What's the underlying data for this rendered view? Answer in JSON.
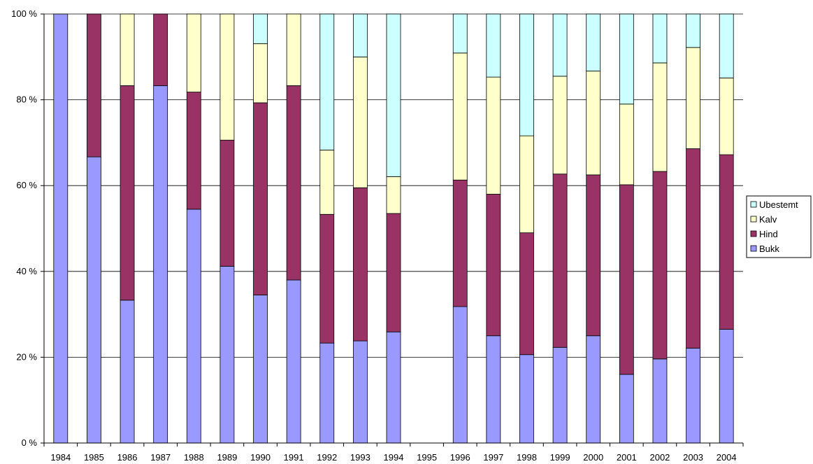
{
  "chart_data": {
    "type": "bar",
    "stacked": "percent",
    "title": "",
    "xlabel": "",
    "ylabel": "",
    "ylim": [
      0,
      100
    ],
    "y_ticks": [
      "0 %",
      "20 %",
      "40 %",
      "60 %",
      "80 %",
      "100 %"
    ],
    "grid": true,
    "legend_position": "right",
    "categories": [
      "1984",
      "1985",
      "1986",
      "1987",
      "1988",
      "1989",
      "1990",
      "1991",
      "1992",
      "1993",
      "1994",
      "1995",
      "1996",
      "1997",
      "1998",
      "1999",
      "2000",
      "2001",
      "2002",
      "2003",
      "2004"
    ],
    "series": [
      {
        "name": "Bukk",
        "color": "#9999ff",
        "values": [
          100,
          66.7,
          33.3,
          83.3,
          54.5,
          41.2,
          34.5,
          38.0,
          23.3,
          23.8,
          25.9,
          0,
          31.8,
          25.0,
          20.6,
          22.3,
          25.0,
          16.0,
          19.6,
          22.1,
          26.5
        ]
      },
      {
        "name": "Hind",
        "color": "#993366",
        "values": [
          0,
          33.3,
          50.0,
          16.7,
          27.3,
          29.4,
          44.8,
          45.3,
          30.0,
          35.7,
          27.6,
          0,
          29.5,
          33.0,
          28.4,
          40.4,
          37.5,
          44.2,
          43.7,
          46.5,
          40.7
        ]
      },
      {
        "name": "Kalv",
        "color": "#ffffcc",
        "values": [
          0,
          0,
          16.7,
          0,
          18.2,
          29.4,
          13.8,
          16.7,
          15.0,
          30.5,
          8.6,
          0,
          29.6,
          27.3,
          22.6,
          22.8,
          24.2,
          18.8,
          25.3,
          23.6,
          17.9
        ]
      },
      {
        "name": "Ubestemt",
        "color": "#ccffff",
        "values": [
          0,
          0,
          0,
          0,
          0,
          0,
          6.9,
          0,
          31.7,
          10.0,
          37.9,
          0,
          9.1,
          14.7,
          28.4,
          14.5,
          13.3,
          21.0,
          11.4,
          7.8,
          14.9
        ]
      }
    ]
  }
}
